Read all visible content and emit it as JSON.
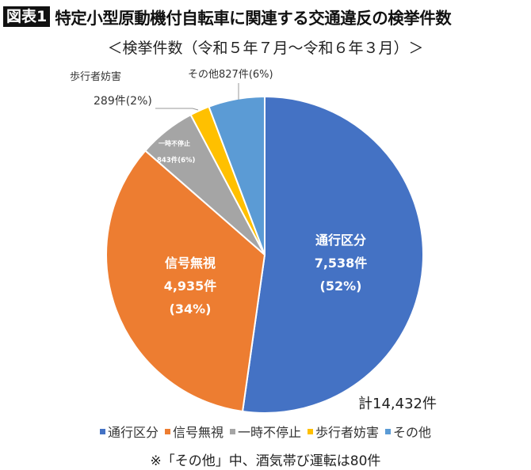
{
  "header": {
    "badge": "図表1",
    "title": "特定小型原動機付自転車に関連する交通違反の検挙件数",
    "subtitle": "＜検挙件数（令和５年７月～令和６年３月）＞"
  },
  "labels": {
    "tsuko": {
      "name": "通行区分",
      "count": "7,538件",
      "pct": "(52%)"
    },
    "shingo": {
      "name": "信号無視",
      "count": "4,935件",
      "pct": "(34%)"
    },
    "ichiji": {
      "name": "一時不停止",
      "count": "843件(6%)"
    },
    "hokosha": {
      "name": "歩行者妨害",
      "count": "289件(2%)"
    },
    "sonota": {
      "text": "その他827件(6%)"
    }
  },
  "total": "計14,432件",
  "legend": [
    {
      "label": "通行区分",
      "color": "#4472C4"
    },
    {
      "label": "信号無視",
      "color": "#ED7D31"
    },
    {
      "label": "一時不停止",
      "color": "#A5A5A5"
    },
    {
      "label": "歩行者妨害",
      "color": "#FFC000"
    },
    {
      "label": "その他",
      "color": "#5B9BD5"
    }
  ],
  "note": "※「その他」中、酒気帯び運転は80件",
  "chart_data": {
    "type": "pie",
    "title": "特定小型原動機付自転車に関連する交通違反の検挙件数",
    "subtitle": "検挙件数（令和5年7月～令和6年3月）",
    "categories": [
      "通行区分",
      "信号無視",
      "一時不停止",
      "歩行者妨害",
      "その他"
    ],
    "values": [
      7538,
      4935,
      843,
      289,
      827
    ],
    "percentages": [
      52,
      34,
      6,
      2,
      6
    ],
    "colors": [
      "#4472C4",
      "#ED7D31",
      "#A5A5A5",
      "#FFC000",
      "#5B9BD5"
    ],
    "total": 14432,
    "legend_position": "bottom",
    "annotations": [
      "計14,432件",
      "※「その他」中、酒気帯び運転は80件"
    ]
  }
}
